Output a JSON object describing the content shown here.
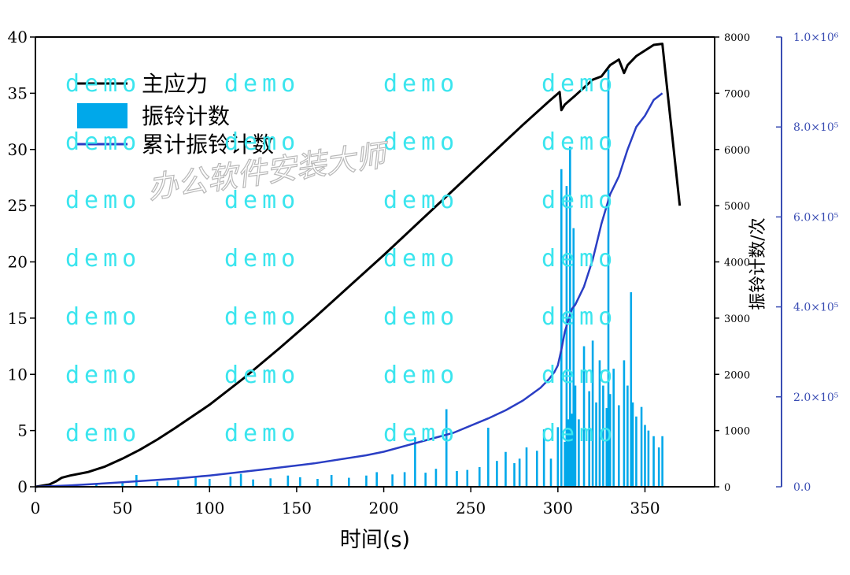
{
  "chart_data": {
    "type": "line",
    "xlabel": "时间(s)",
    "y2label": "振铃计数/次",
    "xlim": [
      0,
      390
    ],
    "ylim": [
      0,
      40
    ],
    "y2lim": [
      0,
      8000
    ],
    "y3lim": [
      0,
      1000000
    ],
    "x_ticks": [
      "0",
      "50",
      "100",
      "150",
      "200",
      "250",
      "300",
      "350"
    ],
    "y_ticks": [
      "0",
      "5",
      "10",
      "15",
      "20",
      "25",
      "30",
      "35",
      "40"
    ],
    "y2_ticks": [
      "0",
      "1000",
      "2000",
      "3000",
      "4000",
      "5000",
      "6000",
      "7000",
      "8000"
    ],
    "y3_ticks": [
      "0.0",
      "2.0×10⁵",
      "4.0×10⁵",
      "6.0×10⁵",
      "8.0×10⁵",
      "1.0×10⁶"
    ],
    "legend_position": "top-left",
    "series": [
      {
        "name": "主应力",
        "axis": "left",
        "color": "#000000",
        "x": [
          0,
          8,
          12,
          15,
          20,
          30,
          40,
          50,
          60,
          70,
          80,
          100,
          120,
          140,
          160,
          180,
          200,
          220,
          240,
          260,
          280,
          295,
          301,
          302,
          304,
          310,
          320,
          325,
          330,
          335,
          338,
          340,
          345,
          350,
          355,
          360,
          362,
          370
        ],
        "y": [
          0,
          0.2,
          0.5,
          0.8,
          1.0,
          1.3,
          1.8,
          2.5,
          3.3,
          4.2,
          5.2,
          7.3,
          9.7,
          12.3,
          15.0,
          17.8,
          20.6,
          23.5,
          26.4,
          29.3,
          32.2,
          34.3,
          35.1,
          33.5,
          34.0,
          34.8,
          36.2,
          36.5,
          37.5,
          38.0,
          36.8,
          37.5,
          38.3,
          38.8,
          39.3,
          39.4,
          36.5,
          25
        ]
      },
      {
        "name": "振铃计数",
        "axis": "right",
        "color": "#00a8ea",
        "x": [
          5,
          20,
          35,
          50,
          58,
          70,
          82,
          92,
          100,
          112,
          118,
          125,
          135,
          145,
          152,
          162,
          170,
          180,
          190,
          196,
          205,
          212,
          218,
          224,
          230,
          236,
          242,
          248,
          255,
          260,
          265,
          270,
          275,
          278,
          282,
          288,
          292,
          296,
          300,
          302,
          304,
          305,
          306,
          307,
          308,
          309,
          310,
          312,
          315,
          318,
          320,
          322,
          324,
          326,
          328,
          329,
          330,
          332,
          335,
          338,
          340,
          342,
          343,
          345,
          348,
          350,
          352,
          355,
          358,
          360
        ],
        "y": [
          20,
          40,
          60,
          80,
          210,
          90,
          120,
          160,
          140,
          180,
          230,
          130,
          150,
          200,
          170,
          140,
          210,
          160,
          200,
          260,
          220,
          260,
          880,
          250,
          320,
          1380,
          280,
          300,
          350,
          1050,
          460,
          620,
          420,
          500,
          700,
          640,
          1020,
          500,
          1060,
          5650,
          800,
          5350,
          1200,
          6050,
          1300,
          4600,
          1800,
          1200,
          2500,
          1700,
          2600,
          1500,
          2250,
          1800,
          1400,
          7420,
          1650,
          2100,
          1450,
          2250,
          1800,
          3460,
          1500,
          1250,
          1420,
          1100,
          1000,
          900,
          700,
          900
        ]
      },
      {
        "name": "累计振铃计数",
        "axis": "right2",
        "color": "#2a3ec4",
        "x": [
          0,
          20,
          50,
          80,
          100,
          130,
          160,
          190,
          200,
          220,
          240,
          260,
          270,
          280,
          290,
          295,
          298,
          300,
          302,
          304,
          306,
          308,
          310,
          315,
          320,
          325,
          330,
          335,
          340,
          345,
          350,
          355,
          360
        ],
        "y": [
          0,
          3000,
          10000,
          18000,
          25000,
          38000,
          52000,
          70000,
          78000,
          99000,
          120000,
          152000,
          170000,
          192000,
          220000,
          240000,
          255000,
          270000,
          305000,
          345000,
          370000,
          395000,
          405000,
          445000,
          505000,
          585000,
          650000,
          690000,
          750000,
          800000,
          825000,
          860000,
          875000
        ]
      }
    ]
  },
  "watermark": {
    "repeat_text": "demo",
    "stamp_text": "办公软件安装大师"
  }
}
